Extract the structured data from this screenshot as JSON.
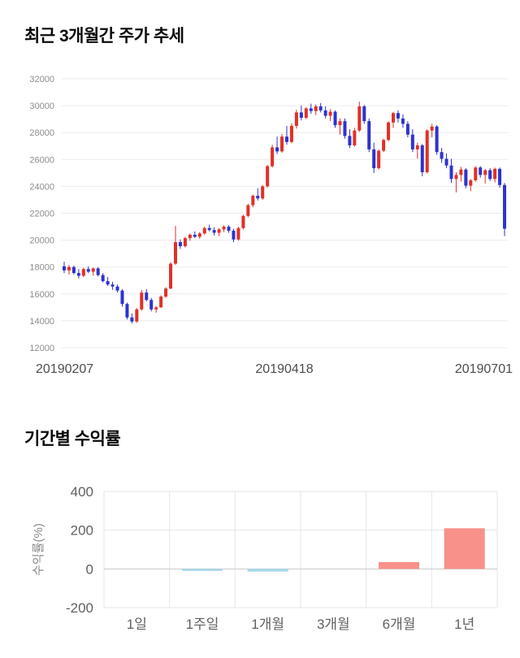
{
  "price_section": {
    "title": "최근 3개월간 주가 추세"
  },
  "returns_section": {
    "title": "기간별 수익률"
  },
  "chart_data": [
    {
      "type": "candlestick",
      "title": "최근 3개월간 주가 추세",
      "x_tick_labels": [
        "20190207",
        "20190418",
        "20190701"
      ],
      "y_ticks": [
        12000,
        14000,
        16000,
        18000,
        20000,
        22000,
        24000,
        26000,
        28000,
        30000,
        32000
      ],
      "ylim": [
        12000,
        32000
      ],
      "up_color": "#e03127",
      "down_color": "#2d33cc",
      "grid_color": "#ebebeb",
      "tick_label_color": "#8c8c8c",
      "x_label_color": "#4d4d4d",
      "candles_ohlc": [
        [
          18050,
          18400,
          17550,
          17750
        ],
        [
          17750,
          18150,
          17450,
          18000
        ],
        [
          18000,
          18100,
          17450,
          17550
        ],
        [
          17550,
          17850,
          17150,
          17350
        ],
        [
          17350,
          17950,
          17250,
          17850
        ],
        [
          17850,
          18050,
          17550,
          17650
        ],
        [
          17650,
          17950,
          17350,
          17900
        ],
        [
          17900,
          18000,
          17300,
          17400
        ],
        [
          17400,
          17550,
          16850,
          16950
        ],
        [
          16950,
          17250,
          16600,
          16700
        ],
        [
          16700,
          16900,
          16300,
          16550
        ],
        [
          16550,
          16700,
          16100,
          16250
        ],
        [
          16250,
          16350,
          15050,
          15250
        ],
        [
          15250,
          15350,
          14100,
          14250
        ],
        [
          14250,
          14550,
          13800,
          13950
        ],
        [
          13950,
          14950,
          13850,
          14850
        ],
        [
          14850,
          16300,
          14750,
          16100
        ],
        [
          16100,
          16350,
          15450,
          15550
        ],
        [
          15550,
          15700,
          14700,
          14850
        ],
        [
          14850,
          15100,
          14600,
          15000
        ],
        [
          15000,
          15900,
          14950,
          15800
        ],
        [
          15800,
          16500,
          15700,
          16400
        ],
        [
          16400,
          18350,
          16350,
          18250
        ],
        [
          18250,
          21050,
          18150,
          19850
        ],
        [
          19850,
          20050,
          19350,
          19550
        ],
        [
          19550,
          20250,
          19450,
          20150
        ],
        [
          20150,
          20500,
          19950,
          20400
        ],
        [
          20400,
          20650,
          20150,
          20250
        ],
        [
          20250,
          20600,
          20100,
          20500
        ],
        [
          20500,
          21000,
          20400,
          20900
        ],
        [
          20900,
          21150,
          20650,
          20750
        ],
        [
          20750,
          20950,
          20350,
          20550
        ],
        [
          20550,
          20900,
          20300,
          20800
        ],
        [
          20800,
          21100,
          20600,
          21000
        ],
        [
          21000,
          21100,
          20550,
          20700
        ],
        [
          20700,
          20850,
          19850,
          20050
        ],
        [
          20050,
          21000,
          19950,
          20900
        ],
        [
          20900,
          21900,
          20800,
          21800
        ],
        [
          21800,
          22700,
          21700,
          22600
        ],
        [
          22600,
          23400,
          22450,
          23300
        ],
        [
          23300,
          23850,
          22950,
          23100
        ],
        [
          23100,
          24100,
          23000,
          24000
        ],
        [
          24000,
          25600,
          23900,
          25500
        ],
        [
          25500,
          27100,
          25400,
          26900
        ],
        [
          26900,
          27700,
          26400,
          26600
        ],
        [
          26600,
          27900,
          26500,
          27700
        ],
        [
          27700,
          28500,
          27100,
          27300
        ],
        [
          27300,
          28700,
          27200,
          28500
        ],
        [
          28500,
          29700,
          28300,
          29500
        ],
        [
          29500,
          30000,
          28900,
          29100
        ],
        [
          29100,
          29900,
          29000,
          29800
        ],
        [
          29800,
          30150,
          29400,
          29600
        ],
        [
          29600,
          30100,
          29300,
          29950
        ],
        [
          29950,
          30200,
          29500,
          29650
        ],
        [
          29650,
          29950,
          29050,
          29250
        ],
        [
          29250,
          29750,
          28850,
          29550
        ],
        [
          29550,
          29650,
          28350,
          28550
        ],
        [
          28550,
          29050,
          27850,
          28850
        ],
        [
          28850,
          29050,
          27550,
          27750
        ],
        [
          27750,
          28250,
          26850,
          27050
        ],
        [
          27050,
          28350,
          26950,
          28150
        ],
        [
          28150,
          30300,
          28050,
          29950
        ],
        [
          29950,
          30050,
          28650,
          28850
        ],
        [
          28850,
          29050,
          26550,
          26750
        ],
        [
          26750,
          27250,
          25000,
          25350
        ],
        [
          25350,
          26750,
          25250,
          26650
        ],
        [
          26650,
          27550,
          26550,
          27450
        ],
        [
          27450,
          28850,
          27350,
          28750
        ],
        [
          28750,
          29550,
          28350,
          29450
        ],
        [
          29450,
          29650,
          28750,
          29050
        ],
        [
          29050,
          29350,
          28350,
          28650
        ],
        [
          28650,
          28850,
          27650,
          27850
        ],
        [
          27850,
          28250,
          26550,
          26750
        ],
        [
          26750,
          27250,
          26050,
          27050
        ],
        [
          27050,
          27150,
          24750,
          25050
        ],
        [
          25050,
          28250,
          24950,
          28150
        ],
        [
          28150,
          28650,
          27650,
          28450
        ],
        [
          28450,
          28550,
          26350,
          26550
        ],
        [
          26550,
          26850,
          25750,
          26050
        ],
        [
          26050,
          26450,
          25350,
          25550
        ],
        [
          25550,
          26050,
          24250,
          24550
        ],
        [
          24550,
          25050,
          23550,
          24850
        ],
        [
          24850,
          25450,
          24350,
          25250
        ],
        [
          25250,
          25350,
          23850,
          24050
        ],
        [
          24050,
          24550,
          23650,
          24450
        ],
        [
          24450,
          25500,
          24350,
          25400
        ],
        [
          25400,
          25500,
          24650,
          24850
        ],
        [
          24850,
          25300,
          24200,
          25200
        ],
        [
          25200,
          25350,
          24400,
          24550
        ],
        [
          24550,
          25400,
          24300,
          25300
        ],
        [
          25300,
          25400,
          23900,
          24100
        ],
        [
          24100,
          24250,
          20300,
          20850
        ]
      ]
    },
    {
      "type": "bar",
      "ylabel": "수익률(%)",
      "categories": [
        "1일",
        "1주일",
        "1개월",
        "3개월",
        "6개월",
        "1년"
      ],
      "values": [
        0,
        -10,
        -14,
        0,
        35,
        210
      ],
      "y_ticks": [
        -200,
        0,
        200,
        400
      ],
      "ylim": [
        -200,
        400
      ],
      "positive_color": "#f8918a",
      "negative_color": "#a5d7e9",
      "grid_color": "#e6e6e6",
      "zero_line_color": "#c8c8c8",
      "tick_label_color": "#606060",
      "axis_label_color": "#8a8a8a"
    }
  ]
}
